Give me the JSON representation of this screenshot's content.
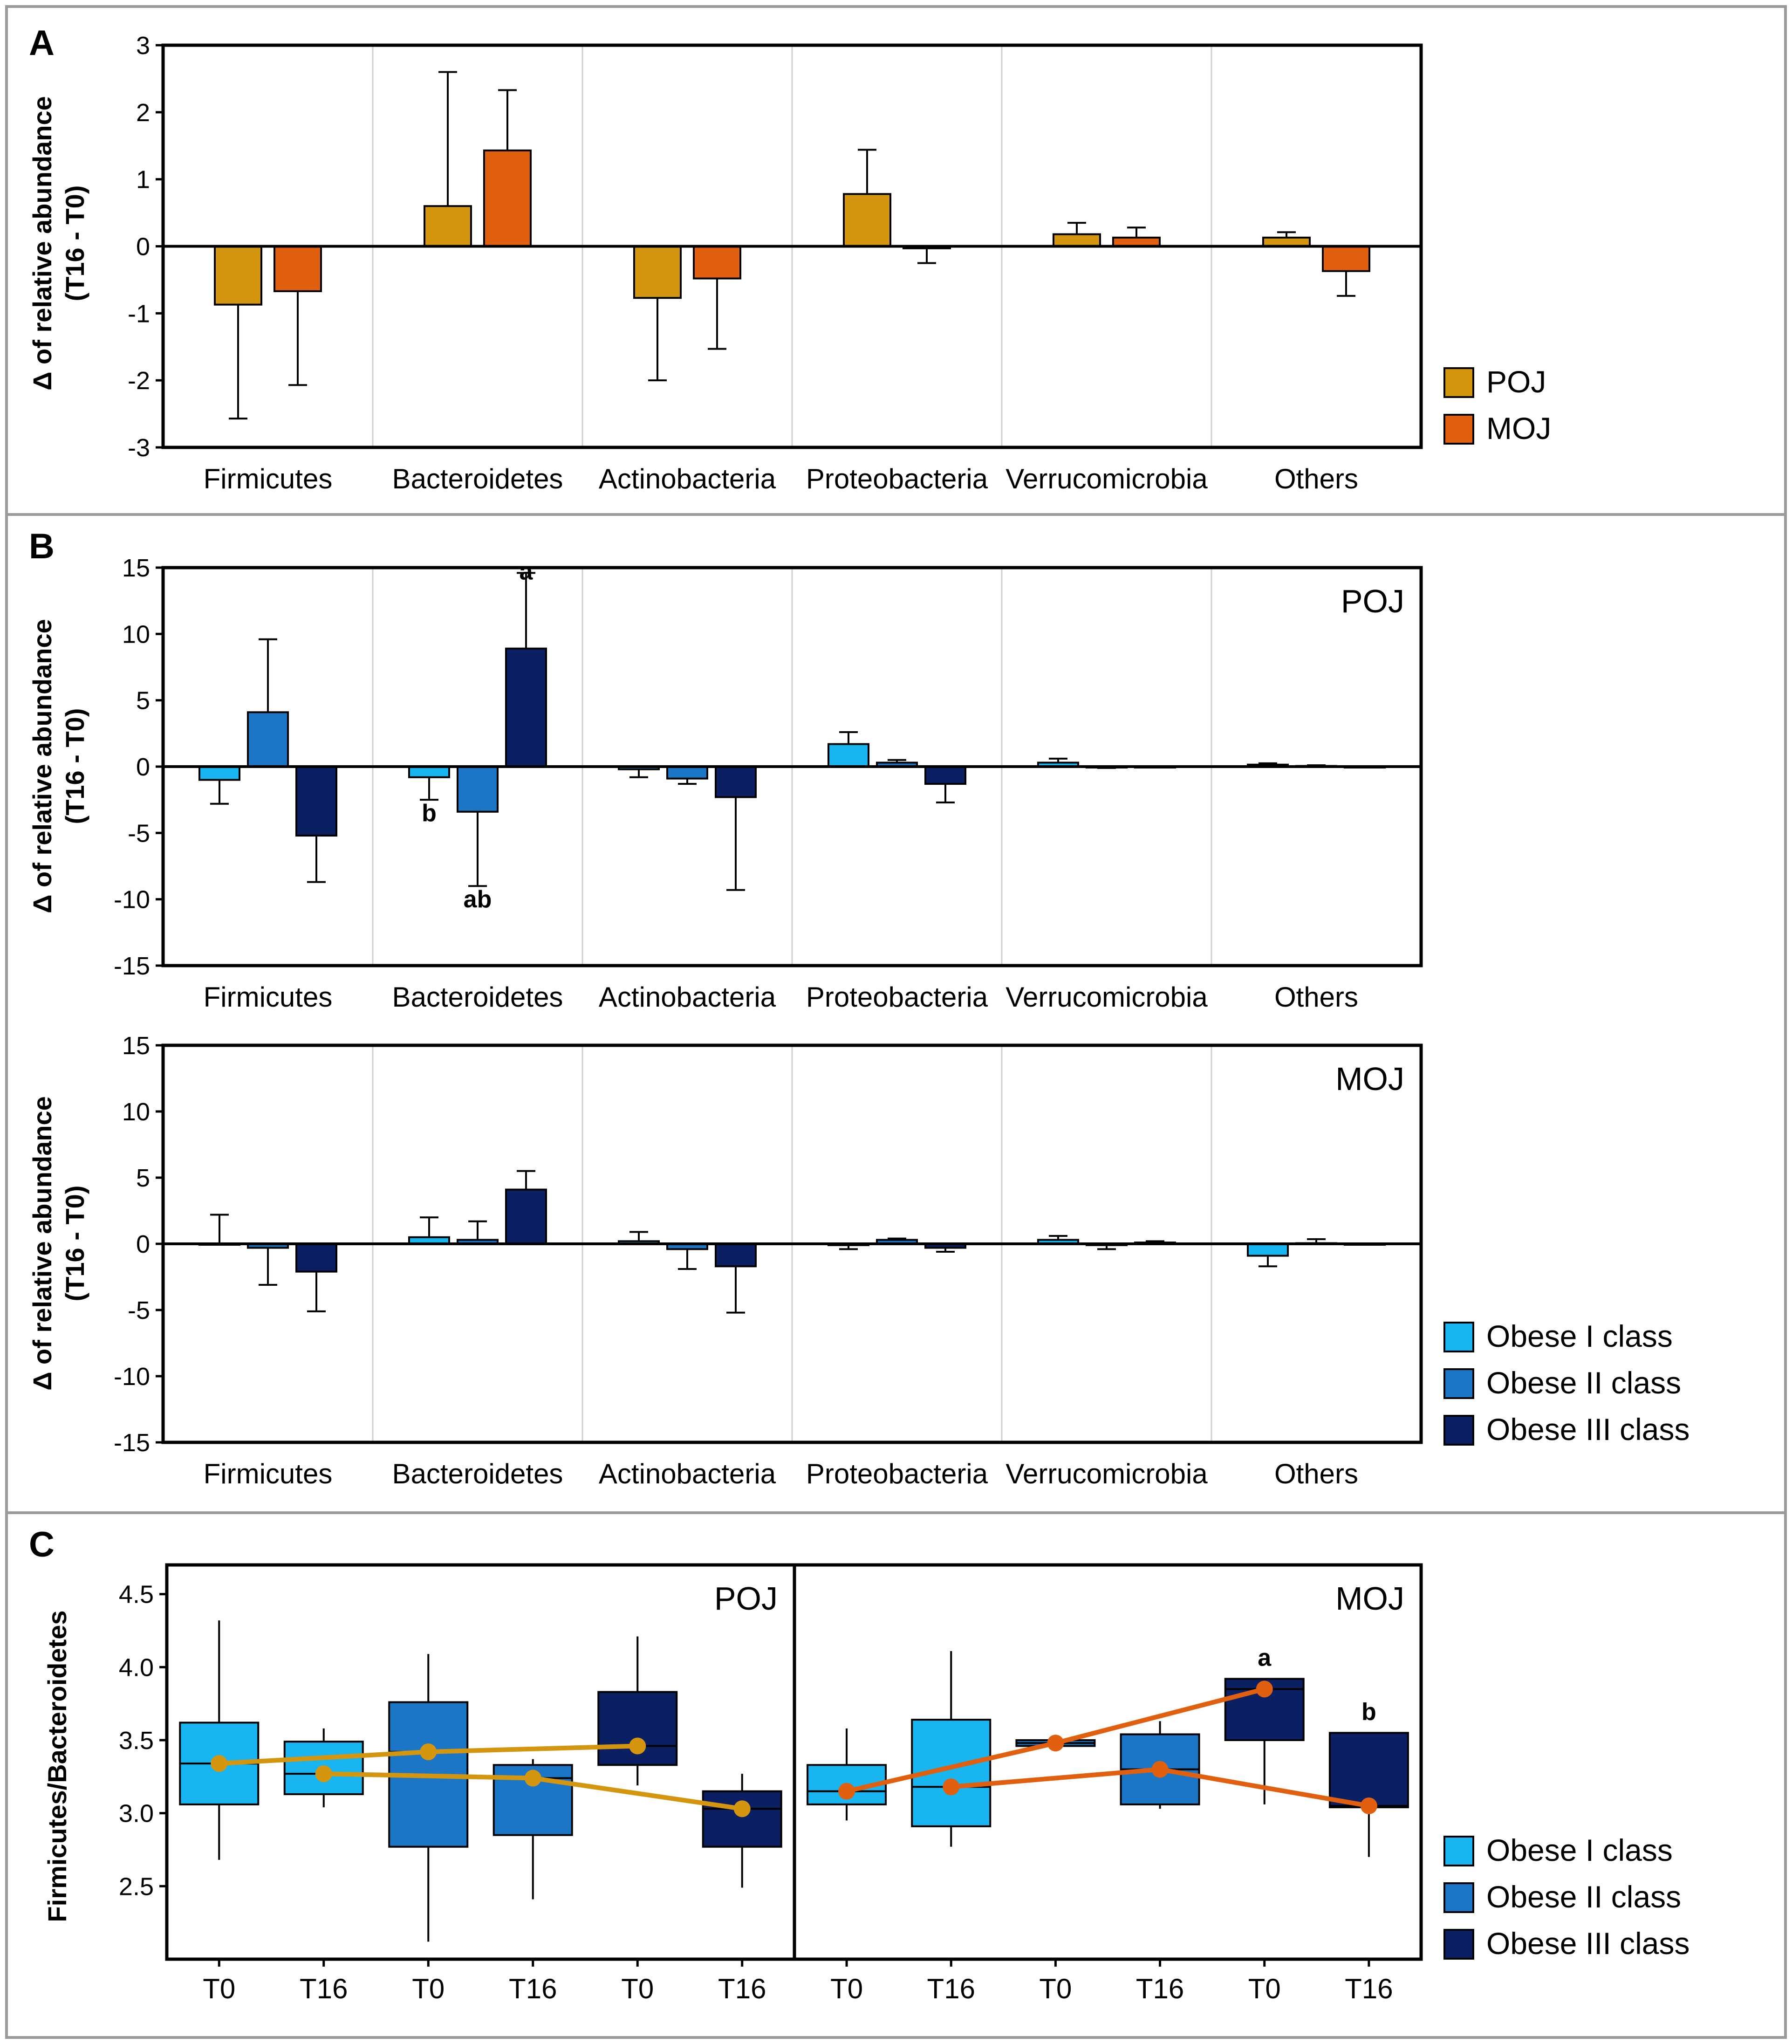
{
  "panels": {
    "a": "A",
    "b": "B",
    "c": "C"
  },
  "y_label_delta": [
    "Δ of relative abundance",
    "(T16 - T0)"
  ],
  "y_label_ratio": "Firmicutes/Bacteroidetes",
  "colors": {
    "POJ": "#D4960F",
    "MOJ": "#E0600F",
    "Obese I class": "#19B5F0",
    "Obese II class": "#1B76C6",
    "Obese III class": "#0B1F63",
    "frame": "#9a9a9a"
  },
  "chart_data": [
    {
      "id": "A",
      "type": "bar",
      "title": "",
      "categories": [
        "Firmicutes",
        "Bacteroidetes",
        "Actinobacteria",
        "Proteobacteria",
        "Verrucomicrobia",
        "Others"
      ],
      "ylim": [
        -3,
        3
      ],
      "yticks": [
        3,
        2,
        1,
        0,
        -1,
        -2,
        -3
      ],
      "series": [
        {
          "name": "POJ",
          "values": [
            -0.87,
            0.6,
            -0.77,
            0.78,
            0.18,
            0.13
          ],
          "error": [
            1.7,
            2.0,
            1.23,
            0.66,
            0.17,
            0.08
          ]
        },
        {
          "name": "MOJ",
          "values": [
            -0.67,
            1.43,
            -0.48,
            -0.03,
            0.13,
            -0.37
          ],
          "error": [
            1.4,
            0.9,
            1.05,
            0.22,
            0.15,
            0.37
          ]
        }
      ],
      "legend": [
        "POJ",
        "MOJ"
      ]
    },
    {
      "id": "B-POJ",
      "type": "bar",
      "title": "POJ",
      "categories": [
        "Firmicutes",
        "Bacteroidetes",
        "Actinobacteria",
        "Proteobacteria",
        "Verrucomicrobia",
        "Others"
      ],
      "ylim": [
        -15,
        15
      ],
      "yticks": [
        15,
        10,
        5,
        0,
        -5,
        -10,
        -15
      ],
      "series": [
        {
          "name": "Obese I class",
          "values": [
            -1.0,
            -0.8,
            -0.2,
            1.7,
            0.3,
            0.15
          ],
          "error": [
            1.8,
            1.7,
            0.6,
            0.9,
            0.3,
            0.1
          ]
        },
        {
          "name": "Obese II class",
          "values": [
            4.1,
            -3.4,
            -0.9,
            0.3,
            -0.05,
            0.05
          ],
          "error": [
            5.5,
            5.6,
            0.4,
            0.2,
            0.05,
            0.05
          ]
        },
        {
          "name": "Obese III class",
          "values": [
            -5.2,
            8.9,
            -2.3,
            -1.3,
            0.0,
            0.0
          ],
          "error": [
            3.5,
            5.7,
            7.0,
            1.4,
            0.0,
            0.0
          ]
        }
      ],
      "annotations": [
        {
          "category": "Bacteroidetes",
          "series": "Obese III class",
          "text": "a",
          "position": "above"
        },
        {
          "category": "Bacteroidetes",
          "series": "Obese I class",
          "text": "b",
          "position": "below"
        },
        {
          "category": "Bacteroidetes",
          "series": "Obese II class",
          "text": "ab",
          "position": "below"
        }
      ]
    },
    {
      "id": "B-MOJ",
      "type": "bar",
      "title": "MOJ",
      "categories": [
        "Firmicutes",
        "Bacteroidetes",
        "Actinobacteria",
        "Proteobacteria",
        "Verrucomicrobia",
        "Others"
      ],
      "ylim": [
        -15,
        15
      ],
      "yticks": [
        15,
        10,
        5,
        0,
        -5,
        -10,
        -15
      ],
      "series": [
        {
          "name": "Obese I class",
          "values": [
            0.0,
            0.5,
            0.2,
            -0.1,
            0.3,
            -0.9
          ],
          "error": [
            2.2,
            1.5,
            0.7,
            0.3,
            0.3,
            0.8
          ]
        },
        {
          "name": "Obese II class",
          "values": [
            -0.3,
            0.3,
            -0.4,
            0.3,
            -0.1,
            0.05
          ],
          "error": [
            2.8,
            1.4,
            1.5,
            0.1,
            0.3,
            0.3
          ]
        },
        {
          "name": "Obese III class",
          "values": [
            -2.1,
            4.1,
            -1.7,
            -0.3,
            0.1,
            0.0
          ],
          "error": [
            3.0,
            1.4,
            3.5,
            0.3,
            0.1,
            0.0
          ]
        }
      ],
      "legend": [
        "Obese I class",
        "Obese II class",
        "Obese III class"
      ]
    },
    {
      "id": "C",
      "type": "box",
      "ylabel": "Firmicutes/Bacteroidetes",
      "ylim": [
        2.0,
        4.7
      ],
      "yticks": [
        4.5,
        4.0,
        3.5,
        3.0,
        2.5
      ],
      "subplots": [
        {
          "title": "POJ",
          "x": [
            "T0",
            "T16",
            "T0",
            "T16",
            "T0",
            "T16"
          ],
          "boxes": [
            {
              "group": "Obese I class",
              "time": "T0",
              "min": 2.68,
              "q1": 3.06,
              "median": 3.34,
              "q3": 3.62,
              "max": 4.32
            },
            {
              "group": "Obese I class",
              "time": "T16",
              "min": 3.04,
              "q1": 3.13,
              "median": 3.27,
              "q3": 3.49,
              "max": 3.58
            },
            {
              "group": "Obese II class",
              "time": "T0",
              "min": 2.12,
              "q1": 2.77,
              "median": 3.42,
              "q3": 3.76,
              "max": 4.09
            },
            {
              "group": "Obese II class",
              "time": "T16",
              "min": 2.41,
              "q1": 2.85,
              "median": 3.24,
              "q3": 3.33,
              "max": 3.37
            },
            {
              "group": "Obese III class",
              "time": "T0",
              "min": 3.19,
              "q1": 3.33,
              "median": 3.46,
              "q3": 3.83,
              "max": 4.21
            },
            {
              "group": "Obese III class",
              "time": "T16",
              "min": 2.49,
              "q1": 2.77,
              "median": 3.03,
              "q3": 3.15,
              "max": 3.27
            }
          ],
          "means": [
            3.34,
            3.27,
            3.42,
            3.24,
            3.46,
            3.03
          ],
          "mean_color": "#D4960F"
        },
        {
          "title": "MOJ",
          "x": [
            "T0",
            "T16",
            "T0",
            "T16",
            "T0",
            "T16"
          ],
          "boxes": [
            {
              "group": "Obese I class",
              "time": "T0",
              "min": 2.95,
              "q1": 3.06,
              "median": 3.15,
              "q3": 3.33,
              "max": 3.58
            },
            {
              "group": "Obese I class",
              "time": "T16",
              "min": 2.77,
              "q1": 2.91,
              "median": 3.18,
              "q3": 3.64,
              "max": 4.11
            },
            {
              "group": "Obese II class",
              "time": "T0",
              "min": 3.46,
              "q1": 3.46,
              "median": 3.48,
              "q3": 3.5,
              "max": 3.5
            },
            {
              "group": "Obese II class",
              "time": "T16",
              "min": 3.03,
              "q1": 3.06,
              "median": 3.3,
              "q3": 3.54,
              "max": 3.63
            },
            {
              "group": "Obese III class",
              "time": "T0",
              "min": 3.06,
              "q1": 3.5,
              "median": 3.85,
              "q3": 3.92,
              "max": 3.92
            },
            {
              "group": "Obese III class",
              "time": "T16",
              "min": 2.7,
              "q1": 3.04,
              "median": 3.05,
              "q3": 3.55,
              "max": 3.55
            }
          ],
          "means": [
            3.15,
            3.18,
            3.48,
            3.3,
            3.85,
            3.05
          ],
          "mean_color": "#E0600F",
          "annotations": [
            {
              "box": 4,
              "text": "a"
            },
            {
              "box": 5,
              "text": "b"
            }
          ]
        }
      ],
      "legend": [
        "Obese I class",
        "Obese II class",
        "Obese III class"
      ]
    }
  ]
}
